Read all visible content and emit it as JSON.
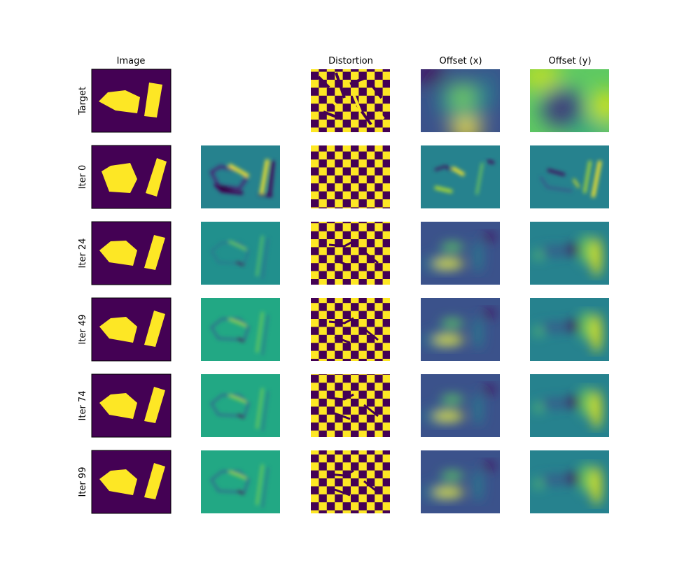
{
  "chart_data": {
    "type": "heatmap",
    "colormap": "viridis",
    "columns": [
      "Image",
      "",
      "Distortion",
      "Offset (x)",
      "Offset (y)"
    ],
    "rows": [
      "Target",
      "Iter 0",
      "Iter 24",
      "Iter 49",
      "Iter 74",
      "Iter 99"
    ],
    "empty_cells": [
      [
        0,
        1
      ]
    ],
    "axes_frame": "only on Image column",
    "grid": false,
    "legend": "none"
  }
}
